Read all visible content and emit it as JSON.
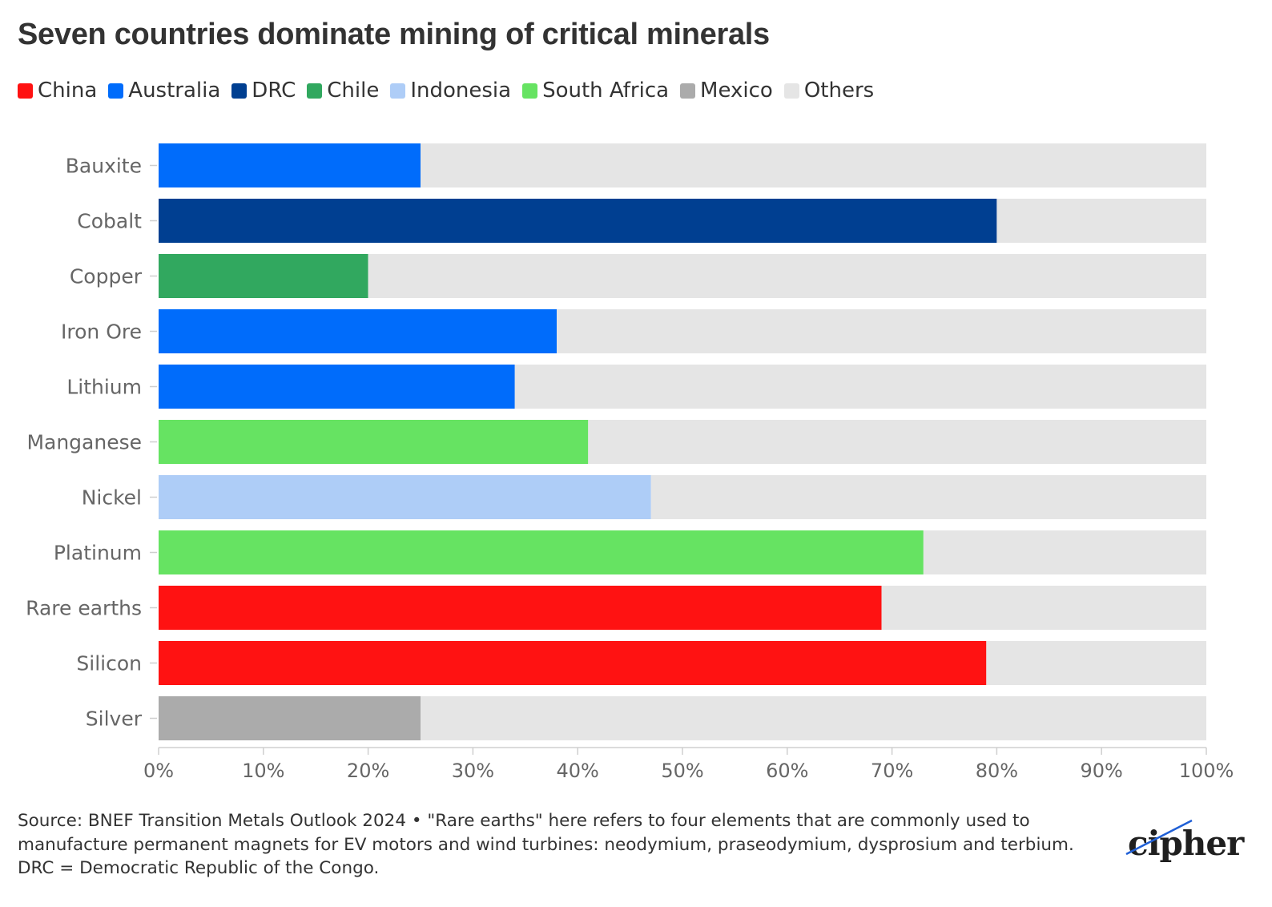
{
  "title": "Seven countries dominate mining of critical minerals",
  "legend": [
    {
      "label": "China",
      "color": "#ff1212"
    },
    {
      "label": "Australia",
      "color": "#006cfb"
    },
    {
      "label": "DRC",
      "color": "#003f91"
    },
    {
      "label": "Chile",
      "color": "#31a85f"
    },
    {
      "label": "Indonesia",
      "color": "#aecdf7"
    },
    {
      "label": "South Africa",
      "color": "#66e362"
    },
    {
      "label": "Mexico",
      "color": "#ababab"
    },
    {
      "label": "Others",
      "color": "#e5e5e5"
    }
  ],
  "chart_data": {
    "type": "bar",
    "orientation": "horizontal",
    "stacked": true,
    "categories": [
      "Bauxite",
      "Cobalt",
      "Copper",
      "Iron Ore",
      "Lithium",
      "Manganese",
      "Nickel",
      "Platinum",
      "Rare earths",
      "Silicon",
      "Silver"
    ],
    "series": [
      {
        "name": "China",
        "values": [
          0,
          0,
          0,
          0,
          0,
          0,
          0,
          0,
          69,
          79,
          0
        ]
      },
      {
        "name": "Australia",
        "values": [
          25,
          0,
          0,
          38,
          34,
          0,
          0,
          0,
          0,
          0,
          0
        ]
      },
      {
        "name": "DRC",
        "values": [
          0,
          80,
          0,
          0,
          0,
          0,
          0,
          0,
          0,
          0,
          0
        ]
      },
      {
        "name": "Chile",
        "values": [
          0,
          0,
          20,
          0,
          0,
          0,
          0,
          0,
          0,
          0,
          0
        ]
      },
      {
        "name": "Indonesia",
        "values": [
          0,
          0,
          0,
          0,
          0,
          0,
          47,
          0,
          0,
          0,
          0
        ]
      },
      {
        "name": "South Africa",
        "values": [
          0,
          0,
          0,
          0,
          0,
          41,
          0,
          73,
          0,
          0,
          0
        ]
      },
      {
        "name": "Mexico",
        "values": [
          0,
          0,
          0,
          0,
          0,
          0,
          0,
          0,
          0,
          0,
          25
        ]
      },
      {
        "name": "Others",
        "values": [
          75,
          20,
          80,
          62,
          66,
          59,
          53,
          27,
          31,
          21,
          75
        ]
      }
    ],
    "xlim": [
      0,
      100
    ],
    "xticks": [
      "0%",
      "10%",
      "20%",
      "30%",
      "40%",
      "50%",
      "60%",
      "70%",
      "80%",
      "90%",
      "100%"
    ],
    "grid": false,
    "legend_position": "top-left"
  },
  "footnote": "Source: BNEF Transition Metals Outlook 2024 • \"Rare earths\" here refers to four elements that are commonly used to manufacture permanent magnets for EV motors and wind turbines: neodymium, praseodymium, dysprosium and terbium. DRC = Democratic Republic of the Congo.",
  "brand": "cipher"
}
